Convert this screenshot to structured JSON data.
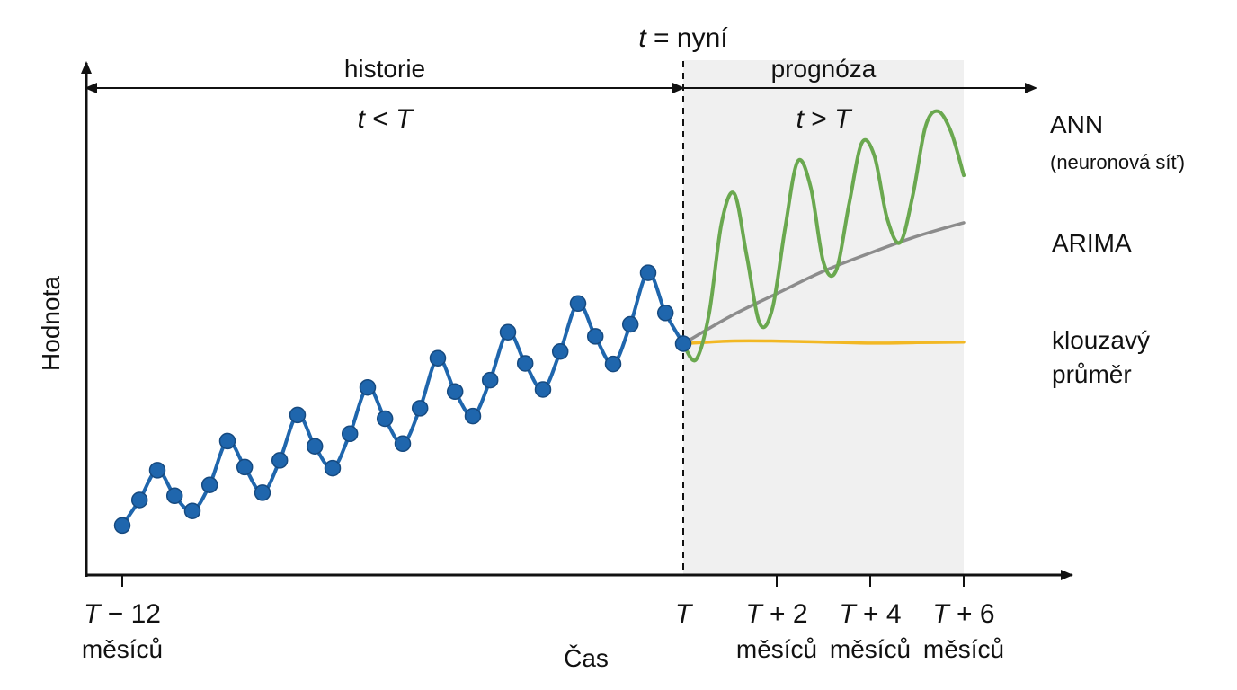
{
  "chart_data": {
    "type": "line",
    "xlabel": "Čas",
    "ylabel": "Hodnota",
    "now_label_var": "t",
    "now_label_rest": " = nyní",
    "regions": {
      "history": {
        "label": "historie",
        "cond_a": "t",
        "cond_op": " < ",
        "cond_b": "T"
      },
      "forecast": {
        "label": "prognóza",
        "cond_a": "t",
        "cond_op": " > ",
        "cond_b": "T"
      }
    },
    "x_ticks": [
      {
        "month": -12,
        "var": "T",
        "rest": " − 12",
        "sub": "měsíců"
      },
      {
        "month": 0,
        "var": "T",
        "rest": "",
        "sub": ""
      },
      {
        "month": 2,
        "var": "T",
        "rest": " + 2",
        "sub": "měsíců"
      },
      {
        "month": 4,
        "var": "T",
        "rest": " + 4",
        "sub": "měsíců"
      },
      {
        "month": 6,
        "var": "T",
        "rest": " + 6",
        "sub": "měsíců"
      }
    ],
    "history": {
      "color": "#1f66ad",
      "x": [
        -12,
        -11.63,
        -11.25,
        -10.88,
        -10.5,
        -10.13,
        -9.75,
        -9.38,
        -9,
        -8.63,
        -8.25,
        -7.88,
        -7.5,
        -7.13,
        -6.75,
        -6.38,
        -6,
        -5.63,
        -5.25,
        -4.88,
        -4.5,
        -4.13,
        -3.75,
        -3.38,
        -3,
        -2.63,
        -2.25,
        -1.88,
        -1.5,
        -1.13,
        -0.75,
        -0.38,
        0
      ],
      "y": [
        9.5,
        14.4,
        20.1,
        15.2,
        12.3,
        17.3,
        25.7,
        20.7,
        15.8,
        22.0,
        30.7,
        24.7,
        20.5,
        27.1,
        36.0,
        30.0,
        25.2,
        32.0,
        41.6,
        35.2,
        30.5,
        37.4,
        46.6,
        40.6,
        35.6,
        42.9,
        52.1,
        45.8,
        40.5,
        48.1,
        58.0,
        50.3,
        44.4
      ]
    },
    "series": [
      {
        "name": "ANN",
        "name_sub": "(neuronová síť)",
        "color": "#6aa84f",
        "x": [
          0,
          0.27,
          0.55,
          0.82,
          1.09,
          1.36,
          1.64,
          1.91,
          2.18,
          2.45,
          2.73,
          3.0,
          3.27,
          3.55,
          3.82,
          4.09,
          4.36,
          4.64,
          4.91,
          5.18,
          5.45,
          5.73,
          6.0
        ],
        "y": [
          44.4,
          41.3,
          50.0,
          67.5,
          73.2,
          61.2,
          48.2,
          51.2,
          66.6,
          79.4,
          74.3,
          60.0,
          58.4,
          71.3,
          82.9,
          80.4,
          68.5,
          63.8,
          72.8,
          86.0,
          89.0,
          85.0,
          76.7
        ]
      },
      {
        "name": "ARIMA",
        "name_sub": "",
        "color": "#8c8c8c",
        "x": [
          0,
          1,
          2,
          3,
          4,
          5,
          6
        ],
        "y": [
          44.4,
          49.6,
          54.0,
          58.3,
          61.8,
          65.0,
          67.6
        ]
      },
      {
        "name": "klouzavý",
        "name_sub": "průměr",
        "color": "#f2b824",
        "x": [
          0,
          1,
          2,
          3,
          4,
          5,
          6
        ],
        "y": [
          44.4,
          44.9,
          44.9,
          44.7,
          44.5,
          44.6,
          44.7
        ]
      }
    ],
    "xlim": [
      -12.3,
      6.9
    ],
    "ylim": [
      0,
      100
    ],
    "grid": false,
    "legend": "right"
  }
}
